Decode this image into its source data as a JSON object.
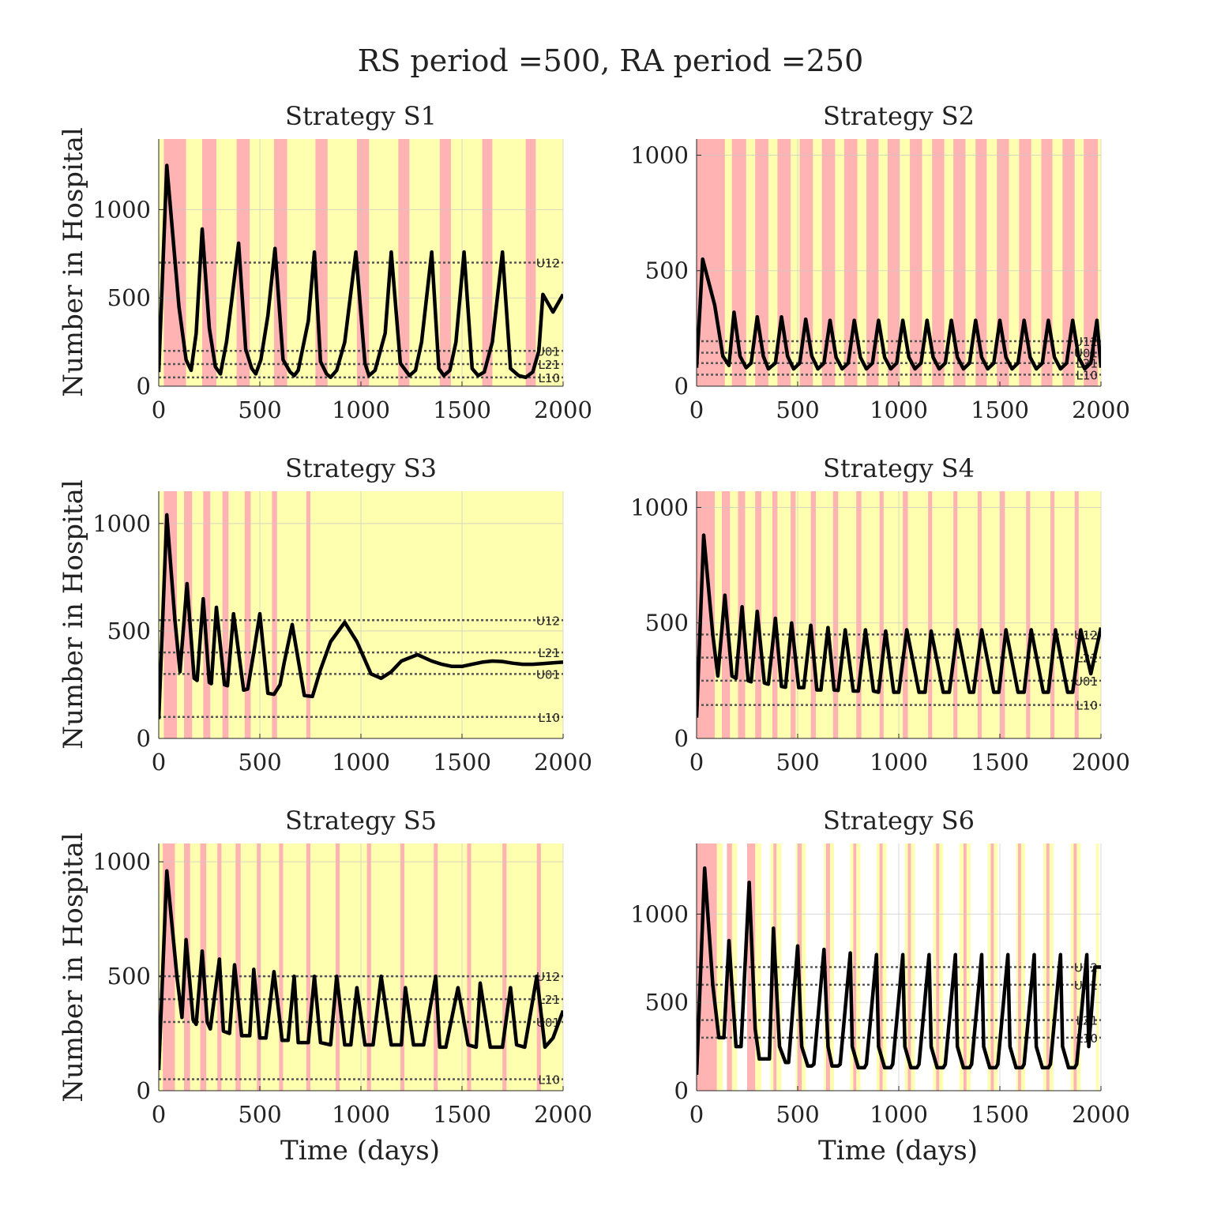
{
  "figure": {
    "title": "RS period =500, RA period =250",
    "ylabel": "Number in Hospital",
    "xlabel": "Time (days)"
  },
  "colors": {
    "red_zone": "#ffb3b3",
    "yellow_zone": "#ffffb0",
    "curve": "#000000",
    "threshold_line": "#555555",
    "grid": "#c8c8c8"
  },
  "chart_data": [
    {
      "type": "line",
      "title": "Strategy S1",
      "x": [
        0,
        40,
        100,
        135,
        160,
        185,
        215,
        250,
        280,
        305,
        335,
        360,
        395,
        430,
        460,
        480,
        505,
        540,
        575,
        615,
        650,
        670,
        690,
        740,
        770,
        800,
        830,
        850,
        880,
        920,
        975,
        1020,
        1040,
        1070,
        1120,
        1150,
        1195,
        1240,
        1270,
        1300,
        1350,
        1385,
        1410,
        1440,
        1470,
        1510,
        1550,
        1580,
        1610,
        1650,
        1700,
        1740,
        1780,
        1815,
        1850,
        1880,
        1900,
        1950,
        2000
      ],
      "y": [
        80,
        1250,
        450,
        150,
        90,
        300,
        890,
        330,
        110,
        70,
        250,
        480,
        810,
        210,
        100,
        70,
        150,
        400,
        780,
        150,
        80,
        60,
        90,
        370,
        760,
        140,
        70,
        50,
        90,
        250,
        760,
        130,
        60,
        90,
        300,
        760,
        130,
        60,
        90,
        250,
        760,
        100,
        60,
        90,
        250,
        760,
        100,
        60,
        80,
        250,
        760,
        100,
        60,
        50,
        80,
        200,
        520,
        420,
        520
      ],
      "xlim": [
        0,
        2000
      ],
      "ylim": [
        0,
        1400
      ],
      "xticks": [
        0,
        500,
        1000,
        1500,
        2000
      ],
      "yticks": [
        0,
        500,
        1000
      ],
      "thresholds": [
        {
          "label": "U12",
          "value": 700
        },
        {
          "label": "U01",
          "value": 200
        },
        {
          "label": "L21",
          "value": 125
        },
        {
          "label": "L10",
          "value": 50
        }
      ],
      "zones_red": [
        [
          25,
          135
        ],
        [
          215,
          285
        ],
        [
          385,
          450
        ],
        [
          570,
          635
        ],
        [
          775,
          835
        ],
        [
          980,
          1040
        ],
        [
          1185,
          1240
        ],
        [
          1390,
          1445
        ],
        [
          1600,
          1650
        ],
        [
          1815,
          1865
        ]
      ]
    },
    {
      "type": "line",
      "title": "Strategy S2",
      "x": [
        0,
        30,
        90,
        130,
        160,
        185,
        215,
        245,
        270,
        300,
        330,
        355,
        390,
        420,
        450,
        480,
        510,
        540,
        570,
        600,
        630,
        660,
        690,
        720,
        750,
        780,
        810,
        840,
        870,
        900,
        930,
        960,
        990,
        1020,
        1050,
        1080,
        1110,
        1140,
        1170,
        1200,
        1230,
        1260,
        1290,
        1320,
        1350,
        1380,
        1410,
        1440,
        1470,
        1500,
        1530,
        1560,
        1590,
        1620,
        1650,
        1680,
        1710,
        1740,
        1770,
        1800,
        1830,
        1860,
        1890,
        1920,
        1950,
        1980,
        2000
      ],
      "y": [
        80,
        550,
        350,
        130,
        90,
        320,
        130,
        80,
        100,
        300,
        130,
        75,
        100,
        300,
        130,
        75,
        100,
        290,
        130,
        75,
        100,
        285,
        125,
        75,
        100,
        285,
        125,
        75,
        100,
        285,
        125,
        75,
        100,
        285,
        125,
        75,
        100,
        285,
        125,
        75,
        100,
        285,
        125,
        75,
        100,
        285,
        125,
        75,
        100,
        285,
        125,
        75,
        100,
        285,
        125,
        75,
        100,
        285,
        125,
        75,
        100,
        285,
        125,
        75,
        100,
        285,
        80
      ],
      "xlim": [
        0,
        2000
      ],
      "ylim": [
        0,
        1070
      ],
      "xticks": [
        0,
        500,
        1000,
        1500,
        2000
      ],
      "yticks": [
        0,
        500,
        1000
      ],
      "thresholds": [
        {
          "label": "U12",
          "value": 195
        },
        {
          "label": "U01",
          "value": 145
        },
        {
          "label": "L21",
          "value": 100
        },
        {
          "label": "L10",
          "value": 50
        }
      ],
      "zones_red": [
        [
          0,
          140
        ],
        [
          175,
          245
        ],
        [
          290,
          355
        ],
        [
          400,
          465
        ],
        [
          510,
          575
        ],
        [
          620,
          685
        ],
        [
          730,
          795
        ],
        [
          840,
          900
        ],
        [
          945,
          1005
        ],
        [
          1055,
          1115
        ],
        [
          1165,
          1225
        ],
        [
          1270,
          1330
        ],
        [
          1380,
          1435
        ],
        [
          1485,
          1545
        ],
        [
          1595,
          1655
        ],
        [
          1705,
          1760
        ],
        [
          1810,
          1870
        ],
        [
          1915,
          1985
        ]
      ]
    },
    {
      "type": "line",
      "title": "Strategy S3",
      "x": [
        0,
        40,
        80,
        105,
        140,
        175,
        190,
        220,
        250,
        260,
        285,
        325,
        340,
        370,
        420,
        440,
        470,
        500,
        540,
        570,
        600,
        620,
        660,
        720,
        760,
        800,
        850,
        920,
        980,
        1050,
        1100,
        1150,
        1200,
        1280,
        1350,
        1400,
        1450,
        1500,
        1550,
        1600,
        1650,
        1700,
        1750,
        1800,
        1850,
        1900,
        1950,
        2000
      ],
      "y": [
        90,
        1040,
        550,
        310,
        720,
        280,
        270,
        650,
        260,
        255,
        610,
        250,
        245,
        580,
        225,
        230,
        400,
        580,
        210,
        205,
        250,
        350,
        530,
        200,
        195,
        320,
        450,
        540,
        450,
        300,
        280,
        310,
        360,
        390,
        360,
        345,
        335,
        335,
        345,
        355,
        360,
        358,
        350,
        345,
        345,
        348,
        352,
        355
      ],
      "xlim": [
        0,
        2000
      ],
      "ylim": [
        0,
        1150
      ],
      "xticks": [
        0,
        500,
        1000,
        1500,
        2000
      ],
      "yticks": [
        0,
        500,
        1000
      ],
      "thresholds": [
        {
          "label": "U12",
          "value": 550
        },
        {
          "label": "L21",
          "value": 400
        },
        {
          "label": "U01",
          "value": 300
        },
        {
          "label": "L10",
          "value": 100
        }
      ],
      "zones_red": [
        [
          25,
          90
        ],
        [
          125,
          165
        ],
        [
          220,
          255
        ],
        [
          315,
          345
        ],
        [
          425,
          455
        ],
        [
          560,
          585
        ],
        [
          730,
          750
        ]
      ]
    },
    {
      "type": "line",
      "title": "Strategy S4",
      "x": [
        0,
        35,
        80,
        105,
        140,
        175,
        195,
        225,
        255,
        270,
        300,
        335,
        355,
        390,
        420,
        440,
        470,
        505,
        530,
        565,
        595,
        615,
        650,
        680,
        700,
        735,
        775,
        800,
        835,
        875,
        900,
        935,
        975,
        1000,
        1040,
        1100,
        1130,
        1160,
        1220,
        1250,
        1290,
        1350,
        1370,
        1410,
        1470,
        1495,
        1530,
        1590,
        1620,
        1655,
        1715,
        1740,
        1775,
        1835,
        1860,
        1900,
        1950,
        2000
      ],
      "y": [
        90,
        880,
        450,
        270,
        620,
        270,
        260,
        570,
        250,
        245,
        550,
        240,
        235,
        520,
        225,
        222,
        500,
        220,
        220,
        490,
        210,
        210,
        480,
        210,
        208,
        470,
        205,
        205,
        470,
        205,
        200,
        465,
        200,
        200,
        470,
        200,
        200,
        465,
        200,
        200,
        470,
        200,
        200,
        470,
        200,
        200,
        470,
        200,
        200,
        470,
        200,
        200,
        470,
        200,
        200,
        470,
        280,
        480
      ],
      "xlim": [
        0,
        2000
      ],
      "ylim": [
        0,
        1070
      ],
      "xticks": [
        0,
        500,
        1000,
        1500,
        2000
      ],
      "yticks": [
        0,
        500,
        1000
      ],
      "thresholds": [
        {
          "label": "U12",
          "value": 450
        },
        {
          "label": "L21",
          "value": 350
        },
        {
          "label": "U01",
          "value": 250
        },
        {
          "label": "L10",
          "value": 145
        }
      ],
      "zones_red": [
        [
          0,
          90
        ],
        [
          125,
          165
        ],
        [
          205,
          240
        ],
        [
          290,
          320
        ],
        [
          375,
          400
        ],
        [
          465,
          490
        ],
        [
          565,
          590
        ],
        [
          675,
          700
        ],
        [
          790,
          815
        ],
        [
          905,
          925
        ],
        [
          1020,
          1045
        ],
        [
          1145,
          1165
        ],
        [
          1270,
          1290
        ],
        [
          1390,
          1410
        ],
        [
          1500,
          1525
        ],
        [
          1630,
          1650
        ],
        [
          1750,
          1770
        ],
        [
          1870,
          1890
        ]
      ]
    },
    {
      "type": "line",
      "title": "Strategy S5",
      "x": [
        0,
        40,
        90,
        115,
        135,
        170,
        185,
        215,
        240,
        255,
        300,
        320,
        350,
        375,
        410,
        450,
        470,
        500,
        530,
        570,
        610,
        640,
        670,
        690,
        740,
        770,
        800,
        850,
        880,
        920,
        950,
        980,
        1020,
        1060,
        1100,
        1150,
        1200,
        1220,
        1260,
        1310,
        1370,
        1390,
        1420,
        1480,
        1530,
        1570,
        1590,
        1640,
        1700,
        1740,
        1770,
        1810,
        1870,
        1910,
        1950,
        2000
      ],
      "y": [
        90,
        960,
        500,
        320,
        660,
        310,
        290,
        610,
        300,
        270,
        575,
        260,
        250,
        550,
        240,
        240,
        530,
        230,
        230,
        520,
        220,
        220,
        500,
        210,
        210,
        500,
        210,
        200,
        500,
        200,
        200,
        450,
        200,
        200,
        500,
        200,
        200,
        450,
        200,
        200,
        500,
        190,
        190,
        450,
        200,
        190,
        470,
        190,
        190,
        450,
        200,
        190,
        500,
        190,
        230,
        350
      ],
      "xlim": [
        0,
        2000
      ],
      "ylim": [
        0,
        1080
      ],
      "xticks": [
        0,
        500,
        1000,
        1500,
        2000
      ],
      "yticks": [
        0,
        500,
        1000
      ],
      "thresholds": [
        {
          "label": "U12",
          "value": 500
        },
        {
          "label": "L21",
          "value": 400
        },
        {
          "label": "U01",
          "value": 300
        },
        {
          "label": "L10",
          "value": 50
        }
      ],
      "zones_red": [
        [
          20,
          80
        ],
        [
          125,
          155
        ],
        [
          205,
          235
        ],
        [
          290,
          310
        ],
        [
          380,
          405
        ],
        [
          485,
          505
        ],
        [
          595,
          615
        ],
        [
          730,
          750
        ],
        [
          875,
          895
        ],
        [
          1030,
          1050
        ],
        [
          1195,
          1215
        ],
        [
          1360,
          1380
        ],
        [
          1525,
          1545
        ],
        [
          1700,
          1720
        ],
        [
          1870,
          1890
        ]
      ]
    },
    {
      "type": "line",
      "title": "Strategy S6",
      "x": [
        0,
        40,
        80,
        110,
        135,
        160,
        195,
        220,
        260,
        290,
        310,
        360,
        380,
        410,
        440,
        455,
        500,
        520,
        550,
        570,
        580,
        630,
        650,
        670,
        700,
        710,
        760,
        770,
        800,
        830,
        840,
        890,
        900,
        930,
        960,
        970,
        1020,
        1030,
        1060,
        1090,
        1100,
        1150,
        1160,
        1190,
        1220,
        1230,
        1280,
        1290,
        1320,
        1350,
        1360,
        1410,
        1420,
        1450,
        1480,
        1490,
        1540,
        1550,
        1580,
        1610,
        1620,
        1670,
        1680,
        1710,
        1740,
        1750,
        1800,
        1810,
        1840,
        1870,
        1880,
        1930,
        1940,
        1970,
        2000
      ],
      "y": [
        90,
        1260,
        600,
        300,
        300,
        850,
        250,
        250,
        1180,
        350,
        180,
        180,
        920,
        250,
        160,
        160,
        820,
        250,
        140,
        140,
        150,
        800,
        250,
        140,
        140,
        150,
        780,
        250,
        130,
        130,
        150,
        770,
        250,
        130,
        130,
        150,
        770,
        250,
        130,
        130,
        150,
        770,
        250,
        130,
        130,
        150,
        770,
        250,
        130,
        130,
        150,
        770,
        250,
        130,
        130,
        150,
        770,
        250,
        130,
        130,
        150,
        770,
        250,
        130,
        130,
        150,
        770,
        250,
        130,
        130,
        150,
        770,
        250,
        700,
        700
      ],
      "xlim": [
        0,
        2000
      ],
      "ylim": [
        0,
        1400
      ],
      "xticks": [
        0,
        500,
        1000,
        1500,
        2000
      ],
      "yticks": [
        0,
        500,
        1000
      ],
      "thresholds": [
        {
          "label": "U12",
          "value": 700
        },
        {
          "label": "U01",
          "value": 600
        },
        {
          "label": "L21",
          "value": 400
        },
        {
          "label": "L10",
          "value": 300
        }
      ],
      "zones_red": [
        [
          0,
          100
        ],
        [
          150,
          175
        ],
        [
          250,
          290
        ],
        [
          380,
          395
        ],
        [
          500,
          520
        ],
        [
          640,
          660
        ],
        [
          775,
          790
        ],
        [
          905,
          920
        ],
        [
          1045,
          1060
        ],
        [
          1185,
          1200
        ],
        [
          1320,
          1335
        ],
        [
          1455,
          1470
        ],
        [
          1590,
          1605
        ],
        [
          1730,
          1745
        ],
        [
          1865,
          1880
        ]
      ],
      "zones_yellow": [
        [
          100,
          130
        ],
        [
          175,
          200
        ],
        [
          290,
          320
        ],
        [
          365,
          380
        ],
        [
          395,
          420
        ],
        [
          490,
          500
        ],
        [
          520,
          540
        ],
        [
          630,
          640
        ],
        [
          660,
          680
        ],
        [
          760,
          775
        ],
        [
          790,
          810
        ],
        [
          890,
          905
        ],
        [
          920,
          940
        ],
        [
          1030,
          1045
        ],
        [
          1060,
          1080
        ],
        [
          1170,
          1185
        ],
        [
          1200,
          1220
        ],
        [
          1300,
          1320
        ],
        [
          1335,
          1355
        ],
        [
          1440,
          1455
        ],
        [
          1470,
          1490
        ],
        [
          1580,
          1590
        ],
        [
          1605,
          1625
        ],
        [
          1715,
          1730
        ],
        [
          1745,
          1765
        ],
        [
          1850,
          1865
        ],
        [
          1880,
          1900
        ],
        [
          1975,
          1990
        ]
      ]
    }
  ]
}
